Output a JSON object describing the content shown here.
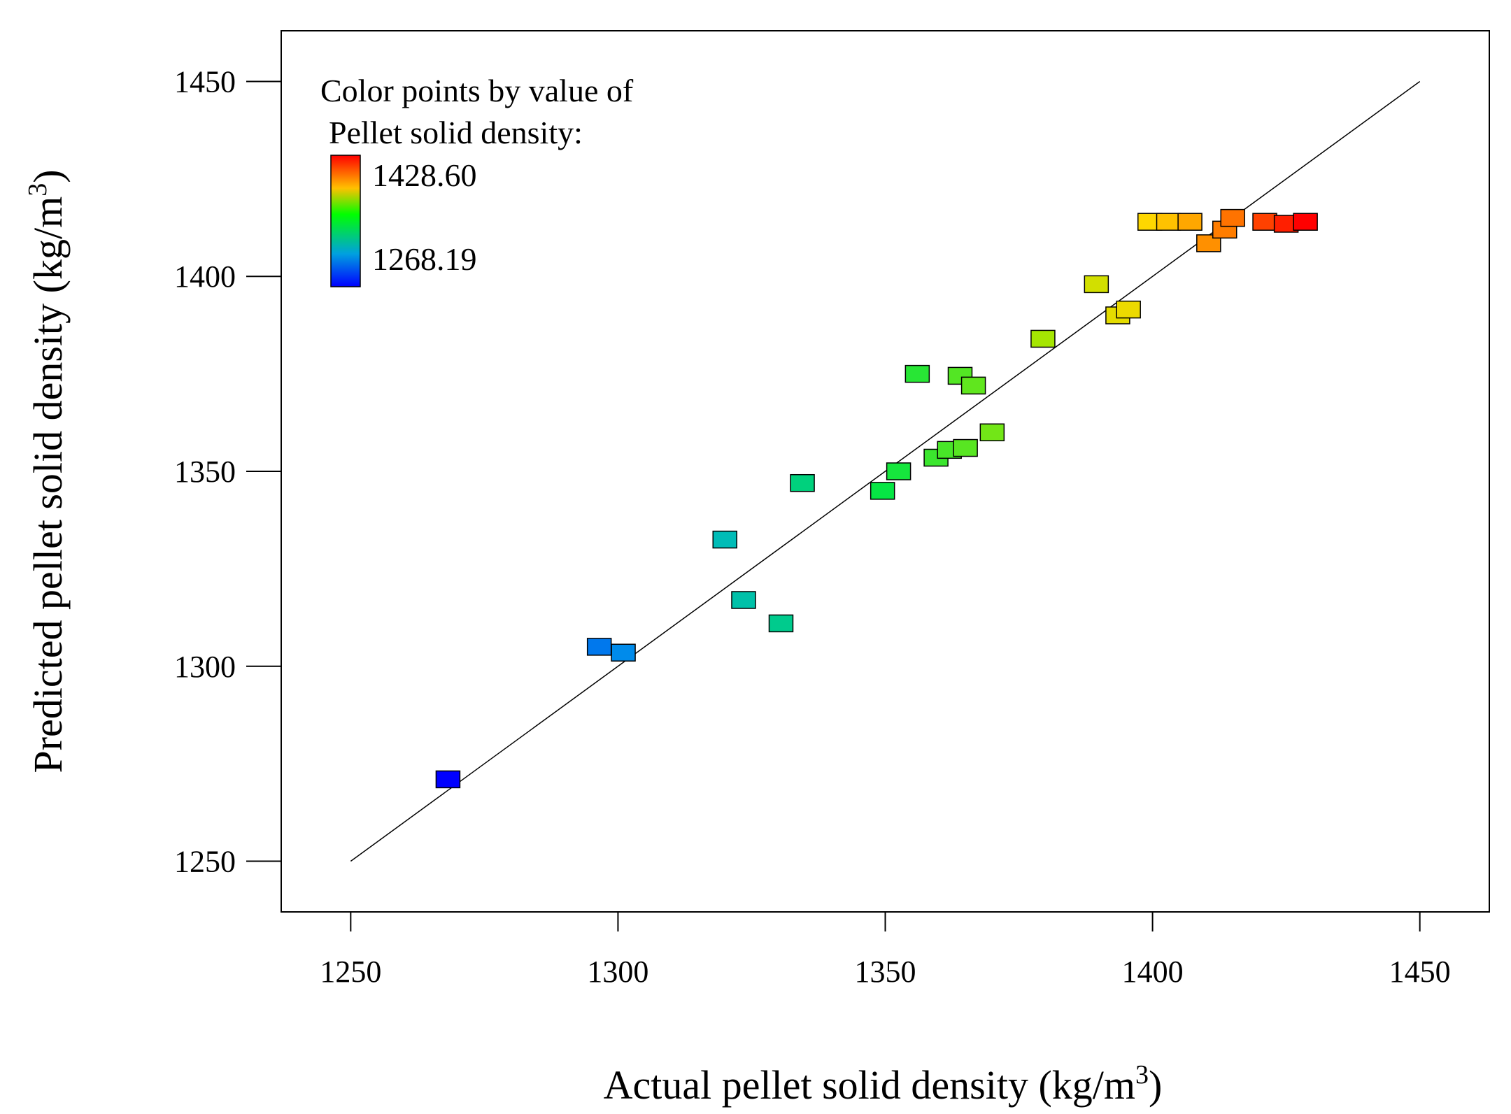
{
  "chart_data": {
    "type": "scatter",
    "xlabel": "Actual pellet solid density (kg/m",
    "xlabel_sup": "3",
    "xlabel_end": ")",
    "ylabel": "Predicted pellet solid density (kg/m",
    "ylabel_sup": "3",
    "ylabel_end": ")",
    "xlim": [
      1237,
      1463
    ],
    "ylim": [
      1237,
      1463
    ],
    "xticks": [
      1250,
      1300,
      1350,
      1400,
      1450
    ],
    "yticks": [
      1250,
      1300,
      1350,
      1400,
      1450
    ],
    "grid": false,
    "reference_line": {
      "from": [
        1250,
        1250
      ],
      "to": [
        1450,
        1450
      ]
    },
    "legend": {
      "placement": "top-left",
      "title_line1": "Color points by value of",
      "title_line2": "Pellet solid density:",
      "max_label": "1428.60",
      "min_label": "1268.19",
      "max_value": 1428.6,
      "min_value": 1268.19,
      "max_color": "#ff0000",
      "min_color": "#0000ff"
    },
    "points": [
      {
        "x": 1268.2,
        "y": 1271.0
      },
      {
        "x": 1296.5,
        "y": 1305.0
      },
      {
        "x": 1301.0,
        "y": 1303.5
      },
      {
        "x": 1320.0,
        "y": 1332.5
      },
      {
        "x": 1323.5,
        "y": 1317.0
      },
      {
        "x": 1330.5,
        "y": 1311.0
      },
      {
        "x": 1334.5,
        "y": 1347.0
      },
      {
        "x": 1349.5,
        "y": 1345.0
      },
      {
        "x": 1352.5,
        "y": 1350.0
      },
      {
        "x": 1356.0,
        "y": 1375.0
      },
      {
        "x": 1359.5,
        "y": 1353.5
      },
      {
        "x": 1362.0,
        "y": 1355.5
      },
      {
        "x": 1365.0,
        "y": 1356.0
      },
      {
        "x": 1364.0,
        "y": 1374.5
      },
      {
        "x": 1366.5,
        "y": 1372.0
      },
      {
        "x": 1370.0,
        "y": 1360.0
      },
      {
        "x": 1379.5,
        "y": 1384.0
      },
      {
        "x": 1389.5,
        "y": 1398.0
      },
      {
        "x": 1393.5,
        "y": 1390.0
      },
      {
        "x": 1395.5,
        "y": 1391.5
      },
      {
        "x": 1399.5,
        "y": 1414.0
      },
      {
        "x": 1403.0,
        "y": 1414.0
      },
      {
        "x": 1407.0,
        "y": 1414.0
      },
      {
        "x": 1410.5,
        "y": 1408.5
      },
      {
        "x": 1413.5,
        "y": 1412.0
      },
      {
        "x": 1415.0,
        "y": 1415.0
      },
      {
        "x": 1421.0,
        "y": 1414.0
      },
      {
        "x": 1425.0,
        "y": 1413.5
      },
      {
        "x": 1428.6,
        "y": 1414.0
      }
    ]
  }
}
